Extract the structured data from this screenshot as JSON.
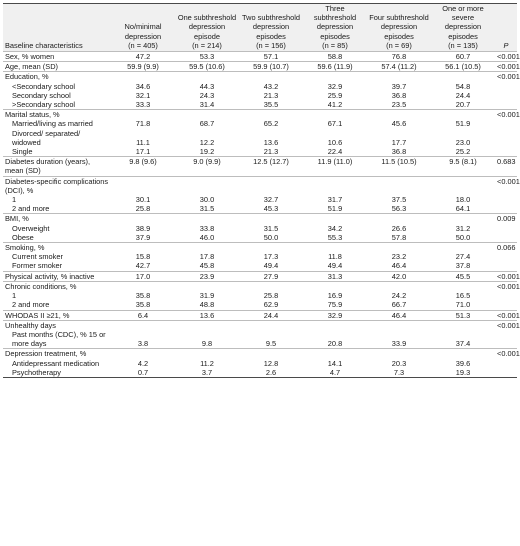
{
  "table": {
    "header": {
      "label": "Baseline characteristics",
      "cols": [
        {
          "title": "No/minimal depression",
          "n": "(n = 405)"
        },
        {
          "title": "One subthreshold depression episode",
          "n": "(n = 214)"
        },
        {
          "title": "Two subthreshold depression episodes",
          "n": "(n = 156)"
        },
        {
          "title": "Three subthreshold depression episodes",
          "n": "(n = 85)"
        },
        {
          "title": "Four subthreshold depression episodes",
          "n": "(n = 69)"
        },
        {
          "title": "One or more severe depression episodes",
          "n": "(n = 135)"
        }
      ],
      "p": "P"
    },
    "groups": [
      {
        "label": "Sex, % women",
        "p": "<0.001",
        "rows": [
          {
            "label": "",
            "vals": [
              "47.2",
              "53.3",
              "57.1",
              "58.8",
              "76.8",
              "60.7"
            ]
          }
        ]
      },
      {
        "label": "Age, mean (SD)",
        "p": "<0.001",
        "rows": [
          {
            "label": "",
            "vals": [
              "59.9 (9.9)",
              "59.5 (10.6)",
              "59.9 (10.7)",
              "59.6 (11.9)",
              "57.4 (11.2)",
              "56.1 (10.5)"
            ]
          }
        ]
      },
      {
        "label": "Education, %",
        "p": "<0.001",
        "rows": [
          {
            "label": "<Secondary school",
            "vals": [
              "34.6",
              "44.3",
              "43.2",
              "32.9",
              "39.7",
              "54.8"
            ]
          },
          {
            "label": "Secondary school",
            "vals": [
              "32.1",
              "24.3",
              "21.3",
              "25.9",
              "36.8",
              "24.4"
            ]
          },
          {
            "label": ">Secondary school",
            "vals": [
              "33.3",
              "31.4",
              "35.5",
              "41.2",
              "23.5",
              "20.7"
            ]
          }
        ]
      },
      {
        "label": "Marital status, %",
        "p": "<0.001",
        "rows": [
          {
            "label": "Married/living as married",
            "vals": [
              "71.8",
              "68.7",
              "65.2",
              "67.1",
              "45.6",
              "51.9"
            ]
          },
          {
            "label": "Divorced/ separated/ widowed",
            "vals": [
              "11.1",
              "12.2",
              "13.6",
              "10.6",
              "17.7",
              "23.0"
            ]
          },
          {
            "label": "Single",
            "vals": [
              "17.1",
              "19.2",
              "21.3",
              "22.4",
              "36.8",
              "25.2"
            ]
          }
        ]
      },
      {
        "label": "Diabetes duration (years), mean (SD)",
        "p": "0.683",
        "rows": [
          {
            "label": "",
            "vals": [
              "9.8 (9.6)",
              "9.0 (9.9)",
              "12.5 (12.7)",
              "11.9 (11.0)",
              "11.5 (10.5)",
              "9.5 (8.1)"
            ]
          }
        ]
      },
      {
        "label": "Diabetes-specific complications (DCI), %",
        "p": "<0.001",
        "rows": [
          {
            "label": "1",
            "vals": [
              "30.1",
              "30.0",
              "32.7",
              "31.7",
              "37.5",
              "18.0"
            ]
          },
          {
            "label": "2 and more",
            "vals": [
              "25.8",
              "31.5",
              "45.3",
              "51.9",
              "56.3",
              "64.1"
            ]
          }
        ]
      },
      {
        "label": "BMI, %",
        "p": "0.009",
        "rows": [
          {
            "label": "Overweight",
            "vals": [
              "38.9",
              "33.8",
              "31.5",
              "34.2",
              "26.6",
              "31.2"
            ]
          },
          {
            "label": "Obese",
            "vals": [
              "37.9",
              "46.0",
              "50.0",
              "55.3",
              "57.8",
              "50.0"
            ]
          }
        ]
      },
      {
        "label": "Smoking, %",
        "p": "0.066",
        "rows": [
          {
            "label": "Current smoker",
            "vals": [
              "15.8",
              "17.8",
              "17.3",
              "11.8",
              "23.2",
              "27.4"
            ]
          },
          {
            "label": "Former smoker",
            "vals": [
              "42.7",
              "45.8",
              "49.4",
              "49.4",
              "46.4",
              "37.8"
            ]
          }
        ]
      },
      {
        "label": "Physical activity, % inactive",
        "p": "<0.001",
        "rows": [
          {
            "label": "",
            "vals": [
              "17.0",
              "23.9",
              "27.9",
              "31.3",
              "42.0",
              "45.5"
            ]
          }
        ]
      },
      {
        "label": "Chronic conditions, %",
        "p": "<0.001",
        "rows": [
          {
            "label": "1",
            "vals": [
              "35.8",
              "31.9",
              "25.8",
              "16.9",
              "24.2",
              "16.5"
            ]
          },
          {
            "label": "2 and more",
            "vals": [
              "35.8",
              "48.8",
              "62.9",
              "75.9",
              "66.7",
              "71.0"
            ]
          }
        ]
      },
      {
        "label": "WHODAS II ≥21, %",
        "p": "<0.001",
        "rows": [
          {
            "label": "",
            "vals": [
              "6.4",
              "13.6",
              "24.4",
              "32.9",
              "46.4",
              "51.3"
            ]
          }
        ]
      },
      {
        "label": "Unhealthy days",
        "p": "<0.001",
        "rows": [
          {
            "label": "Past months (CDC), % 15 or more days",
            "vals": [
              "3.8",
              "9.8",
              "9.5",
              "20.8",
              "33.9",
              "37.4"
            ]
          }
        ]
      },
      {
        "label": "Depression treatment, %",
        "p": "<0.001",
        "rows": [
          {
            "label": "Antidepressant medication",
            "vals": [
              "4.2",
              "11.2",
              "12.8",
              "14.1",
              "20.3",
              "39.6"
            ]
          },
          {
            "label": "Psychotherapy",
            "vals": [
              "0.7",
              "3.7",
              "2.6",
              "4.7",
              "7.3",
              "19.3"
            ]
          }
        ]
      }
    ]
  }
}
